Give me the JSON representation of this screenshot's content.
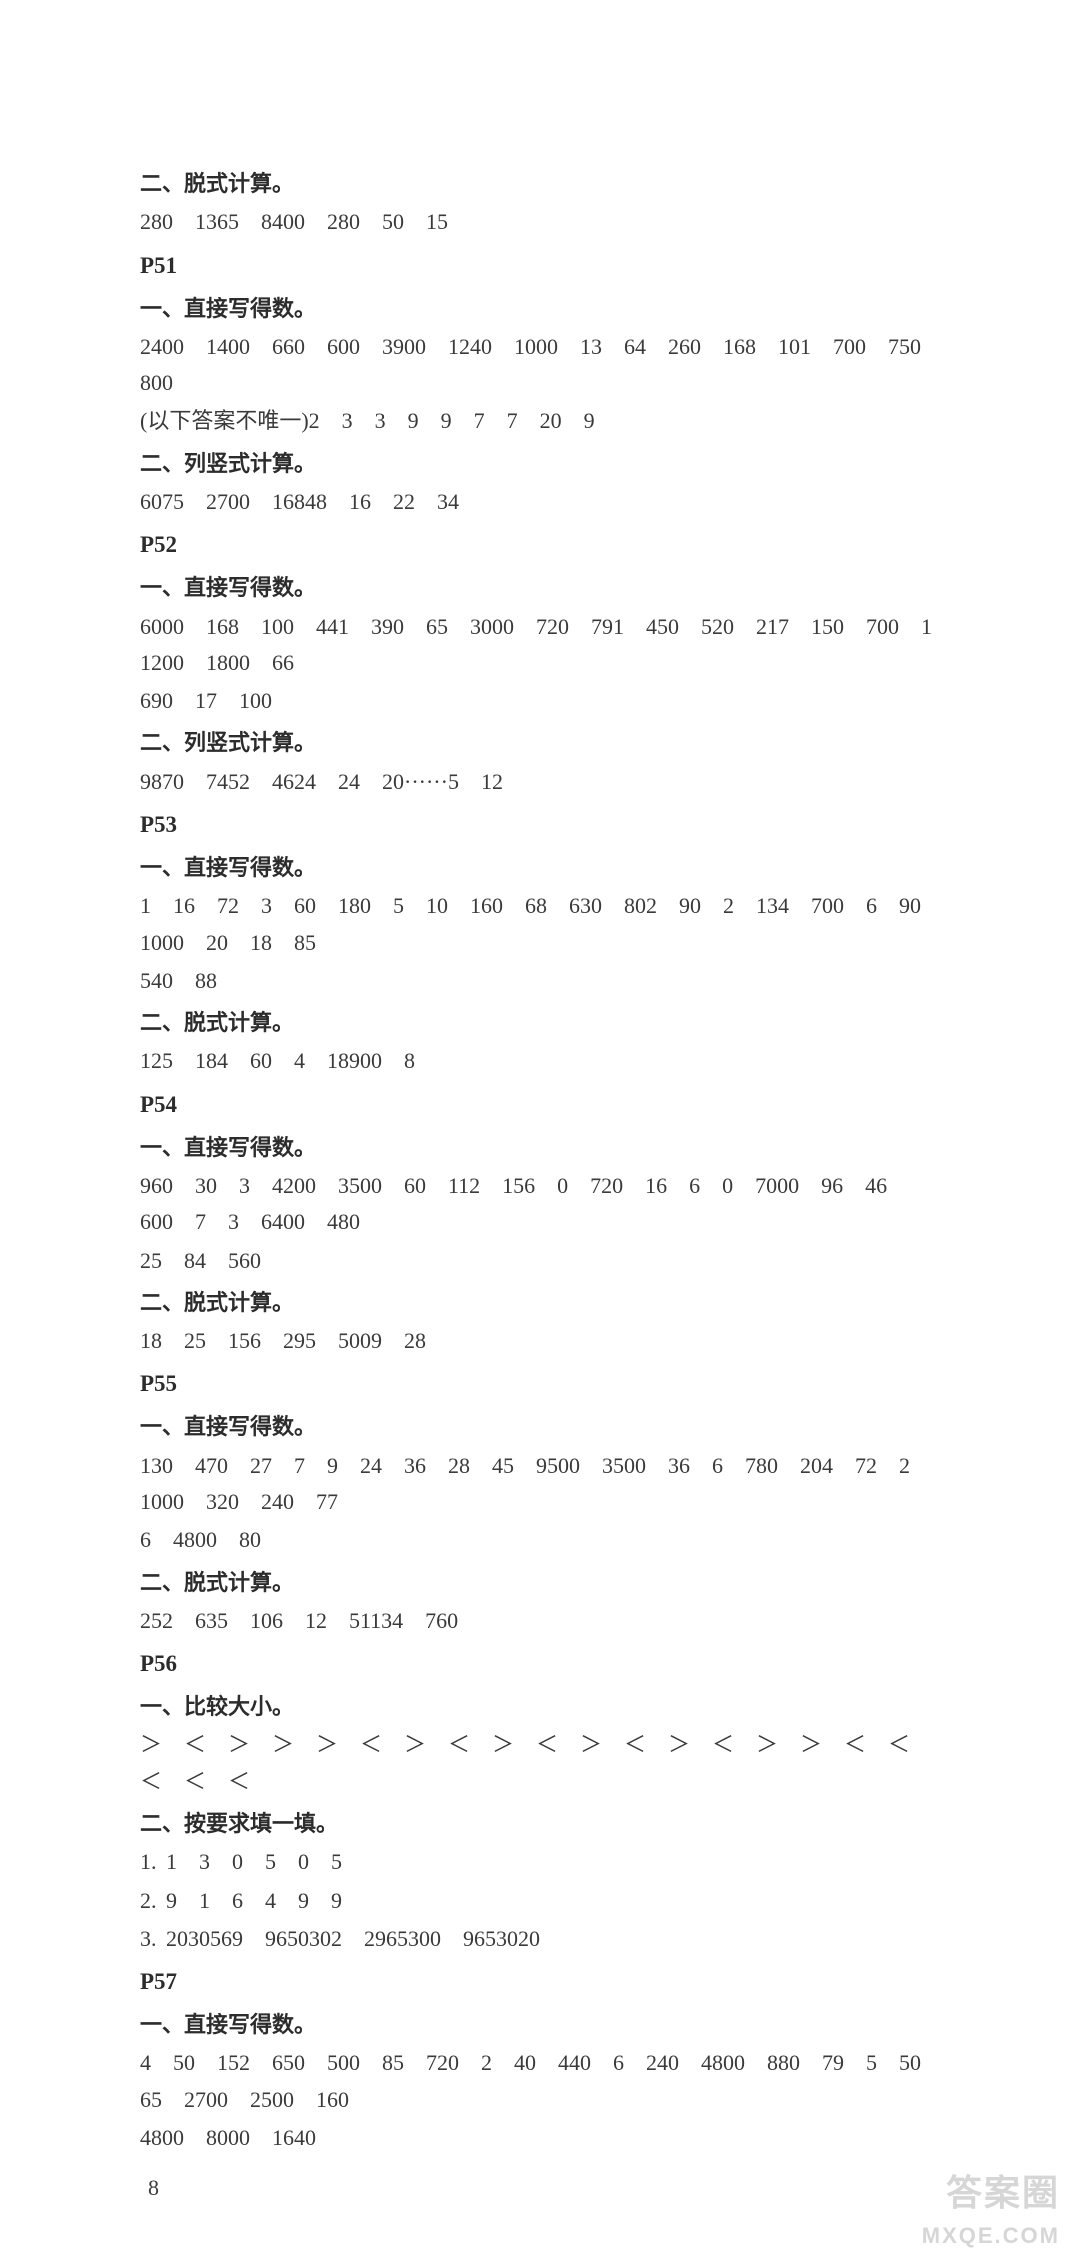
{
  "sections": [
    {
      "type": "heading",
      "text": "二、脱式计算。"
    },
    {
      "type": "answers",
      "text": "280　1365　8400　280　50　15"
    },
    {
      "type": "pagelabel",
      "text": "P51"
    },
    {
      "type": "heading",
      "text": "一、直接写得数。"
    },
    {
      "type": "answers",
      "text": "2400　1400　660　600　3900　1240　1000　13　64　260　168　101　700　750　800"
    },
    {
      "type": "answers",
      "text": "(以下答案不唯一)2　3　3　9　9　7　7　20　9",
      "cn": true
    },
    {
      "type": "heading",
      "text": "二、列竖式计算。"
    },
    {
      "type": "answers",
      "text": "6075　2700　16848　16　22　34"
    },
    {
      "type": "pagelabel",
      "text": "P52"
    },
    {
      "type": "heading",
      "text": "一、直接写得数。"
    },
    {
      "type": "answers",
      "text": "6000　168　100　441　390　65　3000　720　791　450　520　217　150　700　1　1200　1800　66"
    },
    {
      "type": "answers",
      "text": "690　17　100"
    },
    {
      "type": "heading",
      "text": "二、列竖式计算。"
    },
    {
      "type": "answers",
      "text": "9870　7452　4624　24　20······5　12"
    },
    {
      "type": "pagelabel",
      "text": "P53"
    },
    {
      "type": "heading",
      "text": "一、直接写得数。"
    },
    {
      "type": "answers",
      "text": "1　16　72　3　60　180　5　10　160　68　630　802　90　2　134　700　6　90　1000　20　18　85"
    },
    {
      "type": "answers",
      "text": "540　88"
    },
    {
      "type": "heading",
      "text": "二、脱式计算。"
    },
    {
      "type": "answers",
      "text": "125　184　60　4　18900　8"
    },
    {
      "type": "pagelabel",
      "text": "P54"
    },
    {
      "type": "heading",
      "text": "一、直接写得数。"
    },
    {
      "type": "answers",
      "text": "960　30　3　4200　3500　60　112　156　0　720　16　6　0　7000　96　46　600　7　3　6400　480"
    },
    {
      "type": "answers",
      "text": "25　84　560"
    },
    {
      "type": "heading",
      "text": "二、脱式计算。"
    },
    {
      "type": "answers",
      "text": "18　25　156　295　5009　28"
    },
    {
      "type": "pagelabel",
      "text": "P55"
    },
    {
      "type": "heading",
      "text": "一、直接写得数。"
    },
    {
      "type": "answers",
      "text": "130　470　27　7　9　24　36　28　45　9500　3500　36　6　780　204　72　2　1000　320　240　77"
    },
    {
      "type": "answers",
      "text": "6　4800　80"
    },
    {
      "type": "heading",
      "text": "二、脱式计算。"
    },
    {
      "type": "answers",
      "text": "252　635　106　12　51134　760"
    },
    {
      "type": "pagelabel",
      "text": "P56"
    },
    {
      "type": "heading",
      "text": "一、比较大小。"
    },
    {
      "type": "answers",
      "text": "＞　＜　＞　＞　＞　＜　＞　＜　＞　＜　＞　＜　＞　＜　＞　＞　＜　＜　＜　＜　＜"
    },
    {
      "type": "heading",
      "text": "二、按要求填一填。"
    },
    {
      "type": "answers",
      "text": "1. 1　3　0　5　0　5"
    },
    {
      "type": "answers",
      "text": "2. 9　1　6　4　9　9"
    },
    {
      "type": "answers",
      "text": "3. 2030569　9650302　2965300　9653020"
    },
    {
      "type": "pagelabel",
      "text": "P57"
    },
    {
      "type": "heading",
      "text": "一、直接写得数。"
    },
    {
      "type": "answers",
      "text": "4　50　152　650　500　85　720　2　40　440　6　240　4800　880　79　5　50　65　2700　2500　160"
    },
    {
      "type": "answers",
      "text": "4800　8000　1640"
    }
  ],
  "page_number": "8",
  "watermark": {
    "top": "答案圈",
    "bottom": "MXQE.COM"
  },
  "colors": {
    "background": "#ffffff",
    "text": "#2c2c2c",
    "watermark": "#d0d0d0"
  }
}
